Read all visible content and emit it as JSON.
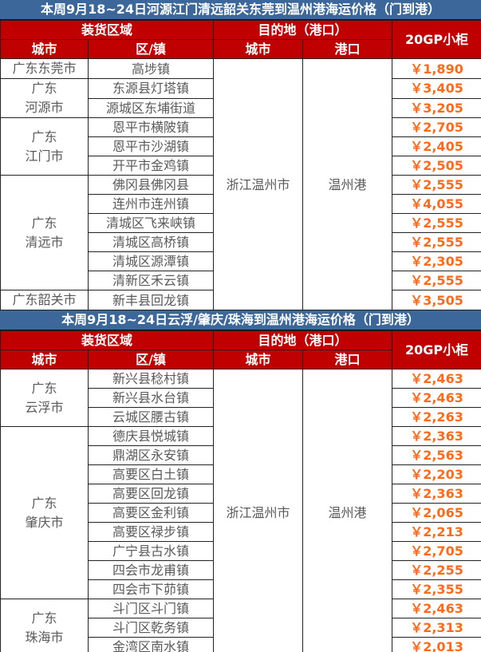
{
  "colors": {
    "title_bg": "#3b679a",
    "header_bg": "#c00000",
    "price": "#ff6a1a"
  },
  "headers": {
    "loading_area": "装货区域",
    "destination": "目的地（港口）",
    "price": "20GP小柜",
    "city": "城市",
    "district": "区/镇",
    "dest_city": "城市",
    "port": "港口"
  },
  "sections": [
    {
      "title": "本周9月18~24日河源江门清远韶关东莞到温州港海运价格（门到港）",
      "dest_city": "浙江温州市",
      "port": "温州港",
      "groups": [
        {
          "city": "广东东莞市",
          "rows": [
            [
              "高埗镇",
              "￥1,890"
            ]
          ]
        },
        {
          "city": "广东\n河源市",
          "rows": [
            [
              "东源县灯塔镇",
              "￥3,405"
            ],
            [
              "源城区东埔街道",
              "￥3,205"
            ]
          ]
        },
        {
          "city": "广东\n江门市",
          "rows": [
            [
              "恩平市横陂镇",
              "￥2,705"
            ],
            [
              "恩平市沙湖镇",
              "￥2,405"
            ],
            [
              "开平市金鸡镇",
              "￥2,505"
            ]
          ]
        },
        {
          "city": "广东\n清远市",
          "rows": [
            [
              "佛冈县佛冈县",
              "￥2,555"
            ],
            [
              "连州市连州镇",
              "￥4,055"
            ],
            [
              "清城区飞来峡镇",
              "￥2,555"
            ],
            [
              "清城区高桥镇",
              "￥2,555"
            ],
            [
              "清城区源潭镇",
              "￥2,305"
            ],
            [
              "清新区禾云镇",
              "￥2,555"
            ]
          ]
        },
        {
          "city": "广东韶关市",
          "rows": [
            [
              "新丰县回龙镇",
              "￥3,505"
            ]
          ]
        }
      ]
    },
    {
      "title": "本周9月18~24日云浮/肇庆/珠海到温州港海运价格（门到港）",
      "dest_city": "浙江温州市",
      "port": "温州港",
      "groups": [
        {
          "city": "广东\n云浮市",
          "rows": [
            [
              "新兴县稔村镇",
              "￥2,463"
            ],
            [
              "新兴县水台镇",
              "￥2,463"
            ],
            [
              "云城区腰古镇",
              "￥2,263"
            ]
          ]
        },
        {
          "city": "广东\n肇庆市",
          "rows": [
            [
              "德庆县悦城镇",
              "￥2,363"
            ],
            [
              "鼎湖区永安镇",
              "￥2,563"
            ],
            [
              "高要区白土镇",
              "￥2,203"
            ],
            [
              "高要区回龙镇",
              "￥2,363"
            ],
            [
              "高要区金利镇",
              "￥2,065"
            ],
            [
              "高要区禄步镇",
              "￥2,213"
            ],
            [
              "广宁县古水镇",
              "￥2,705"
            ],
            [
              "四会市龙甫镇",
              "￥2,255"
            ],
            [
              "四会市下茆镇",
              "￥2,355"
            ]
          ]
        },
        {
          "city": "广东\n珠海市",
          "rows": [
            [
              "斗门区斗门镇",
              "￥2,463"
            ],
            [
              "斗门区乾务镇",
              "￥2,313"
            ],
            [
              "金湾区南水镇",
              "￥2,013"
            ]
          ]
        }
      ]
    }
  ]
}
